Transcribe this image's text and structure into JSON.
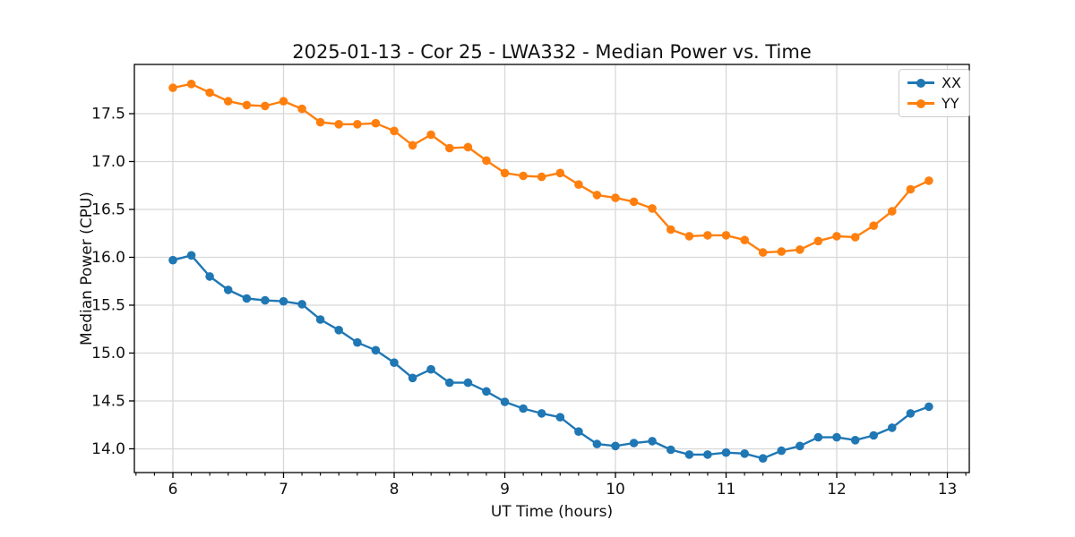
{
  "chart_data": {
    "type": "line",
    "title": "2025-01-13 - Cor 25 - LWA332 - Median Power vs. Time",
    "xlabel": "UT Time (hours)",
    "ylabel": "Median Power (CPU)",
    "xlim": [
      5.652,
      13.198
    ],
    "ylim": [
      13.752,
      18.014
    ],
    "xticks": [
      6,
      7,
      8,
      9,
      10,
      11,
      12,
      13
    ],
    "yticks": [
      14.0,
      14.5,
      15.0,
      15.5,
      16.0,
      16.5,
      17.0,
      17.5
    ],
    "x_minor_tick_step": 0.1667,
    "grid": true,
    "legend_position": "upper right",
    "x": [
      6.0,
      6.167,
      6.333,
      6.5,
      6.667,
      6.833,
      7.0,
      7.167,
      7.333,
      7.5,
      7.667,
      7.833,
      8.0,
      8.167,
      8.333,
      8.5,
      8.667,
      8.833,
      9.0,
      9.167,
      9.333,
      9.5,
      9.667,
      9.833,
      10.0,
      10.167,
      10.333,
      10.5,
      10.667,
      10.833,
      11.0,
      11.167,
      11.333,
      11.5,
      11.667,
      11.833,
      12.0,
      12.167,
      12.333,
      12.5,
      12.667,
      12.833
    ],
    "series": [
      {
        "name": "XX",
        "color": "#1f77b4",
        "values": [
          15.97,
          16.02,
          15.8,
          15.66,
          15.57,
          15.55,
          15.54,
          15.51,
          15.35,
          15.24,
          15.11,
          15.03,
          14.9,
          14.74,
          14.83,
          14.69,
          14.69,
          14.6,
          14.49,
          14.42,
          14.37,
          14.33,
          14.18,
          14.05,
          14.03,
          14.06,
          14.08,
          13.99,
          13.94,
          13.94,
          13.96,
          13.95,
          13.9,
          13.98,
          14.03,
          14.12,
          14.12,
          14.09,
          14.14,
          14.22,
          14.37,
          14.44
        ]
      },
      {
        "name": "YY",
        "color": "#ff7f0e",
        "values": [
          17.77,
          17.81,
          17.72,
          17.63,
          17.59,
          17.58,
          17.63,
          17.55,
          17.41,
          17.39,
          17.39,
          17.4,
          17.32,
          17.17,
          17.28,
          17.14,
          17.15,
          17.01,
          16.88,
          16.85,
          16.84,
          16.88,
          16.76,
          16.65,
          16.62,
          16.58,
          16.51,
          16.29,
          16.22,
          16.23,
          16.23,
          16.18,
          16.05,
          16.06,
          16.08,
          16.17,
          16.22,
          16.21,
          16.33,
          16.48,
          16.71,
          16.8
        ]
      }
    ],
    "colors": {
      "grid": "#d8d8d8",
      "axes": "#000000",
      "text": "#111111"
    }
  }
}
